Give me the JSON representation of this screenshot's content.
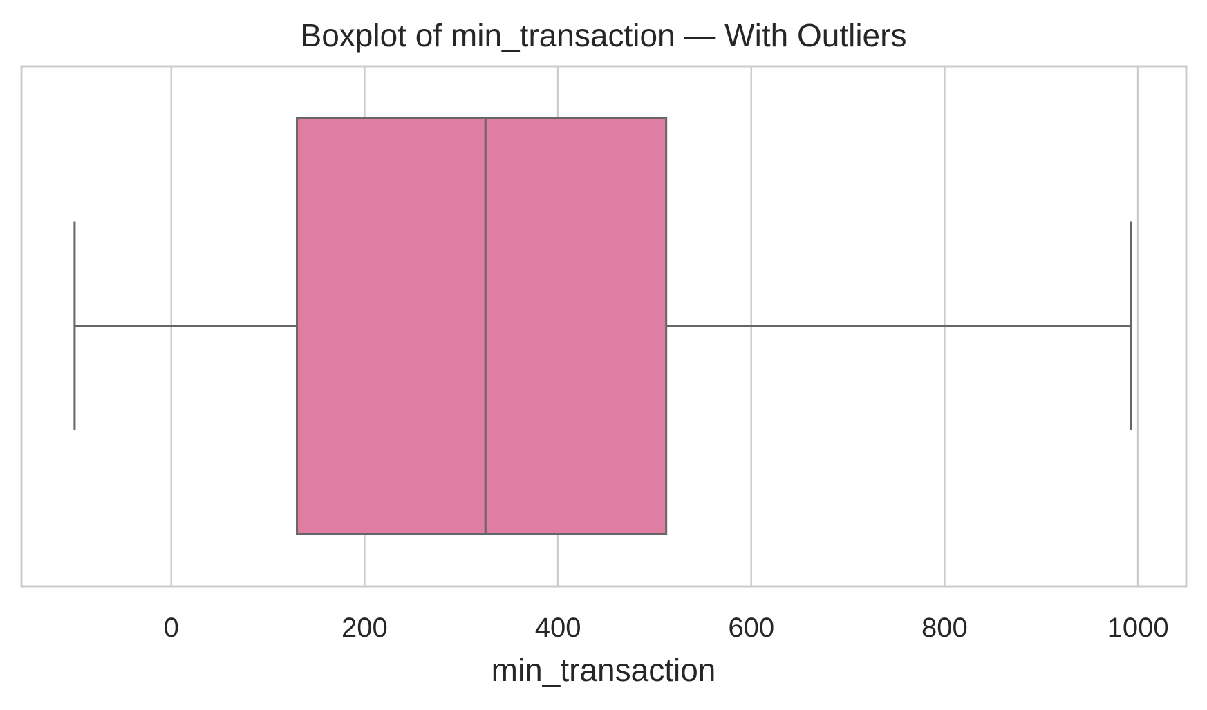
{
  "chart_data": {
    "type": "boxplot",
    "title": "Boxplot of min_transaction — With Outliers",
    "xlabel": "min_transaction",
    "ylabel": "",
    "orientation": "horizontal",
    "xlim": [
      -155,
      1050
    ],
    "x_ticks": [
      0,
      200,
      400,
      600,
      800,
      1000
    ],
    "x_tick_labels": [
      "0",
      "200",
      "400",
      "600",
      "800",
      "1000"
    ],
    "grid": true,
    "box": {
      "whisker_low": -100,
      "q1": 130,
      "median": 325,
      "q3": 512,
      "whisker_high": 993
    },
    "colors": {
      "box_fill": "#e07da2",
      "line": "#666666",
      "grid": "#cccccc",
      "spine": "#cccccc"
    }
  }
}
